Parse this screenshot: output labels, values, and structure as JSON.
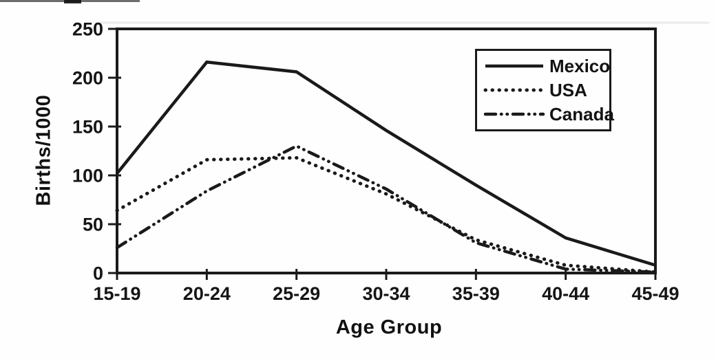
{
  "chart_data": {
    "type": "line",
    "title": "",
    "xlabel": "Age Group",
    "ylabel": "Births/1000",
    "categories": [
      "15-19",
      "20-24",
      "25-29",
      "30-34",
      "35-39",
      "40-44",
      "45-49"
    ],
    "y_ticks": [
      250,
      200,
      150,
      100,
      50,
      0
    ],
    "ylim": [
      0,
      250
    ],
    "grid": false,
    "legend_position": "top-right",
    "ink_color": "#1a1a1a",
    "background": "#fefefe",
    "series": [
      {
        "name": "Mexico",
        "line_style": "solid",
        "values": [
          102,
          216,
          206,
          146,
          90,
          36,
          8
        ]
      },
      {
        "name": "USA",
        "line_style": "dotted",
        "values": [
          64,
          116,
          118,
          81,
          34,
          8,
          1
        ]
      },
      {
        "name": "Canada",
        "line_style": "dash-dot",
        "values": [
          26,
          84,
          130,
          86,
          31,
          4,
          1
        ]
      }
    ]
  }
}
